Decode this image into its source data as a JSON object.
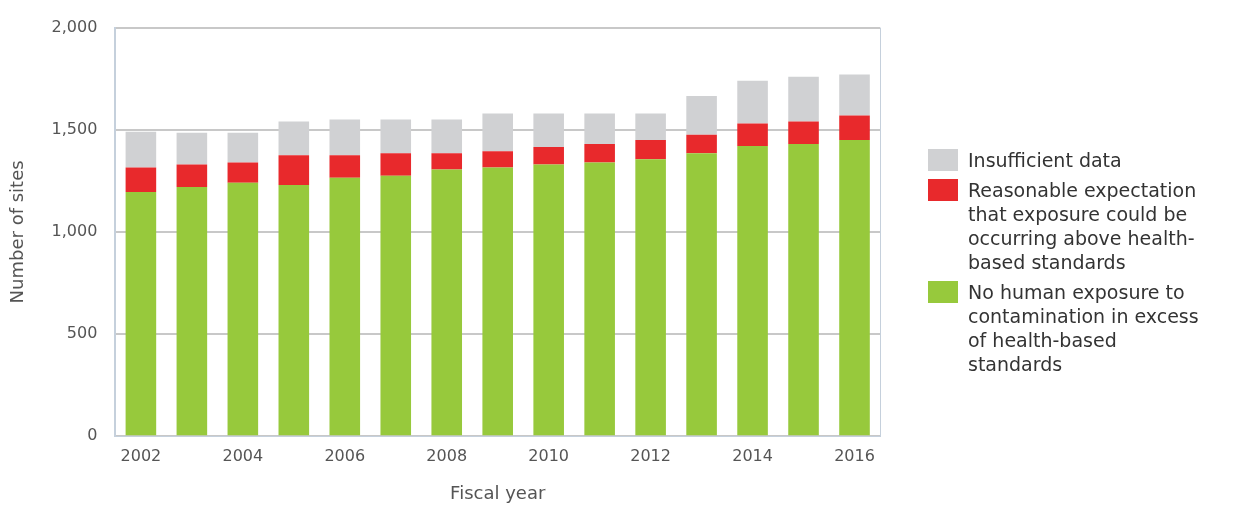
{
  "chart_data": {
    "type": "bar",
    "stacked": true,
    "xlabel": "Fiscal year",
    "ylabel": "Number of sites",
    "categories": [
      "2002",
      null,
      "2004",
      null,
      "2006",
      null,
      "2008",
      null,
      "2010",
      null,
      "2012",
      null,
      "2014",
      null,
      "2016"
    ],
    "series": [
      {
        "name": "No human exposure to contamination in excess of health-based standards",
        "color": "#97c93c",
        "values": [
          1195,
          1220,
          1240,
          1230,
          1265,
          1275,
          1305,
          1315,
          1330,
          1340,
          1355,
          1385,
          1420,
          1430,
          1450
        ]
      },
      {
        "name": "Reasonable expectation that exposure could be occurring above health-based standards",
        "color": "#e8292c",
        "values": [
          120,
          110,
          100,
          145,
          110,
          110,
          80,
          80,
          85,
          90,
          95,
          90,
          110,
          110,
          120
        ]
      },
      {
        "name": "Insufficient data",
        "color": "#d0d1d3",
        "values": [
          175,
          155,
          145,
          165,
          175,
          165,
          165,
          185,
          165,
          150,
          130,
          190,
          210,
          220,
          200
        ]
      }
    ],
    "ylim": [
      0,
      2000
    ],
    "yticks": [
      0,
      500,
      {
        "value": 1000,
        "label": "1,000"
      },
      {
        "value": 1500,
        "label": "1,500"
      },
      {
        "value": 2000,
        "label": "2,000"
      }
    ],
    "grid": "y",
    "legend": "right"
  }
}
